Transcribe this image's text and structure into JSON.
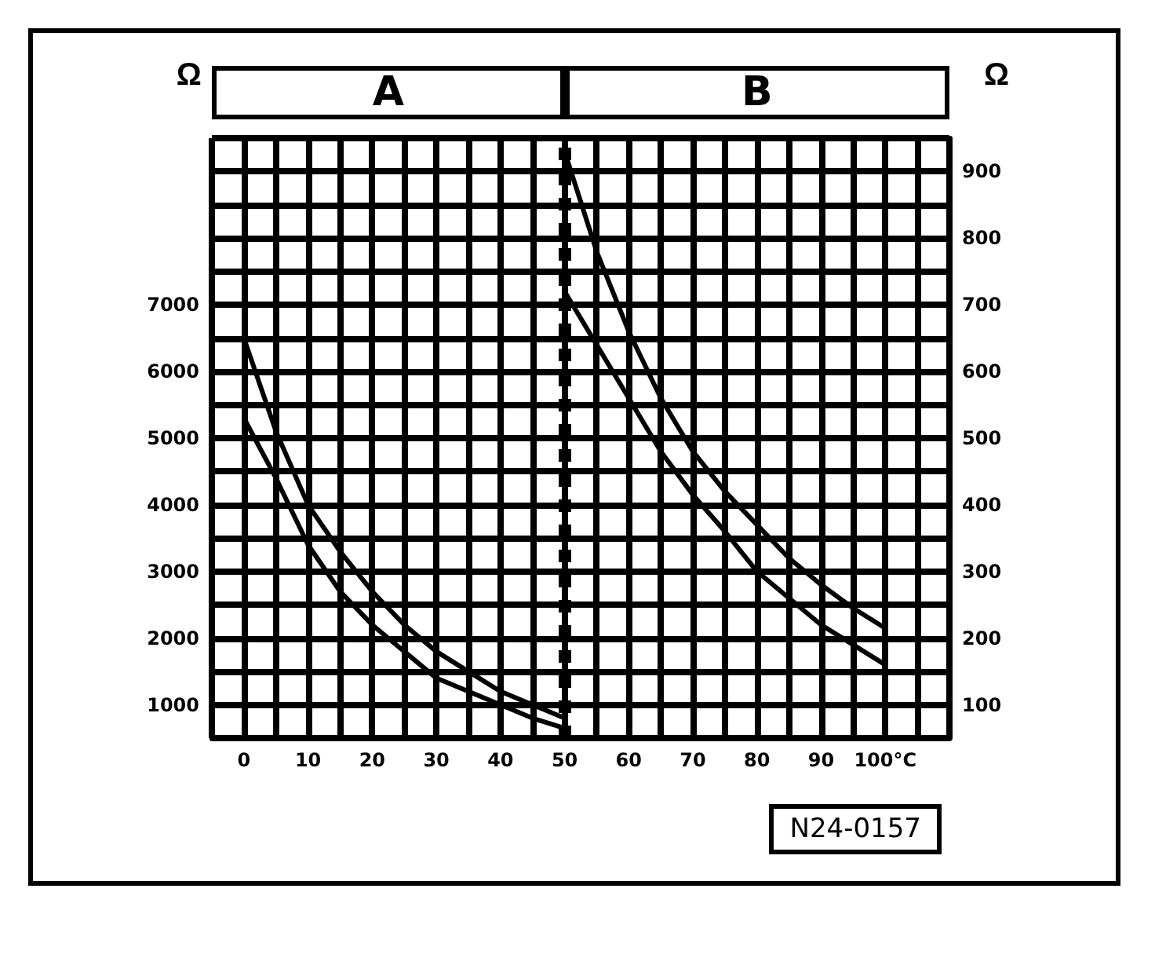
{
  "chart_data": {
    "type": "line",
    "ylabel": "Ω",
    "y2label": "Ω",
    "annotations": [
      "A",
      "B",
      "N24-0157"
    ],
    "xlim": [
      -5,
      110
    ],
    "xticks": [
      {
        "value": -5,
        "label": null
      },
      0,
      {
        "value": 5,
        "label": null
      },
      10,
      {
        "value": 15,
        "label": null
      },
      20,
      {
        "value": 25,
        "label": null
      },
      30,
      {
        "value": 35,
        "label": null
      },
      40,
      {
        "value": 45,
        "label": null
      },
      50,
      {
        "value": 55,
        "label": null
      },
      60,
      {
        "value": 65,
        "label": null
      },
      70,
      {
        "value": 75,
        "label": null
      },
      80,
      {
        "value": 85,
        "label": null
      },
      90,
      {
        "value": 95,
        "label": null
      },
      {
        "value": 100,
        "label": "100°C"
      },
      {
        "value": 105,
        "label": null
      },
      {
        "value": 110,
        "label": null
      }
    ],
    "ylim": [
      500,
      9500
    ],
    "yticks": [
      {
        "value": 500,
        "label": null
      },
      1000,
      {
        "value": 1500,
        "label": null
      },
      2000,
      {
        "value": 2500,
        "label": null
      },
      3000,
      {
        "value": 3500,
        "label": null
      },
      4000,
      {
        "value": 4500,
        "label": null
      },
      5000,
      {
        "value": 5500,
        "label": null
      },
      6000,
      {
        "value": 6500,
        "label": null
      },
      7000,
      {
        "value": 7500,
        "label": null
      },
      {
        "value": 8000,
        "label": null
      },
      {
        "value": 8500,
        "label": null
      },
      {
        "value": 9000,
        "label": null
      },
      {
        "value": 9500,
        "label": null
      }
    ],
    "y2lim": [
      50,
      950
    ],
    "y2ticks": [
      {
        "value": 50,
        "label": null
      },
      100,
      {
        "value": 150,
        "label": null
      },
      200,
      {
        "value": 250,
        "label": null
      },
      300,
      {
        "value": 350,
        "label": null
      },
      400,
      {
        "value": 450,
        "label": null
      },
      500,
      {
        "value": 550,
        "label": null
      },
      600,
      {
        "value": 650,
        "label": null
      },
      700,
      {
        "value": 750,
        "label": null
      },
      800,
      {
        "value": 850,
        "label": null
      },
      900,
      {
        "value": 950,
        "label": null
      }
    ],
    "grid": true,
    "marker": "none",
    "line_style": "solid",
    "ref_lines": [
      {
        "axis": "x",
        "value": 50,
        "line_style": "dotted",
        "color": "#000000"
      }
    ],
    "series": [
      {
        "color": "#000000",
        "x": [
          0,
          5,
          10,
          15,
          20,
          25,
          30,
          35,
          40,
          45,
          50
        ],
        "values": [
          6500,
          5100,
          4000,
          3300,
          2700,
          2200,
          1800,
          1500,
          1200,
          1000,
          800
        ]
      },
      {
        "color": "#000000",
        "x": [
          0,
          5,
          10,
          15,
          20,
          25,
          30,
          35,
          40,
          45,
          50
        ],
        "values": [
          5300,
          4400,
          3400,
          2700,
          2200,
          1800,
          1400,
          1200,
          1000,
          800,
          650
        ]
      },
      {
        "color": "#000000",
        "axis": "y2",
        "x": [
          50,
          55,
          60,
          65,
          70,
          75,
          80,
          85,
          90,
          95,
          100
        ],
        "values": [
          930,
          780,
          660,
          560,
          480,
          420,
          370,
          320,
          280,
          245,
          215
        ]
      },
      {
        "color": "#000000",
        "axis": "y2",
        "x": [
          50,
          55,
          60,
          65,
          70,
          75,
          80,
          85,
          90,
          95,
          100
        ],
        "values": [
          720,
          640,
          560,
          480,
          415,
          360,
          300,
          260,
          220,
          190,
          160
        ]
      }
    ]
  }
}
